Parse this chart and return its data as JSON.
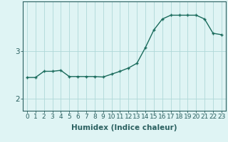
{
  "x": [
    0,
    1,
    2,
    3,
    4,
    5,
    6,
    7,
    8,
    9,
    10,
    11,
    12,
    13,
    14,
    15,
    16,
    17,
    18,
    19,
    20,
    21,
    22,
    23
  ],
  "y": [
    2.45,
    2.45,
    2.58,
    2.58,
    2.6,
    2.47,
    2.47,
    2.47,
    2.47,
    2.46,
    2.52,
    2.58,
    2.65,
    2.75,
    3.08,
    3.45,
    3.68,
    3.76,
    3.76,
    3.76,
    3.76,
    3.68,
    3.38,
    3.35
  ],
  "line_color": "#1a6b5c",
  "marker": "+",
  "bg_color": "#dff4f4",
  "grid_color": "#aed8d8",
  "axis_color": "#2a6060",
  "tick_color": "#2a6060",
  "xlabel": "Humidex (Indice chaleur)",
  "ylim": [
    1.75,
    4.05
  ],
  "xlim": [
    -0.5,
    23.5
  ],
  "yticks": [
    2,
    3
  ],
  "xticks": [
    0,
    1,
    2,
    3,
    4,
    5,
    6,
    7,
    8,
    9,
    10,
    11,
    12,
    13,
    14,
    15,
    16,
    17,
    18,
    19,
    20,
    21,
    22,
    23
  ],
  "tick_fontsize": 6.5,
  "label_fontsize": 7.5,
  "linewidth": 1.0,
  "markersize": 3.5,
  "markeredgewidth": 1.0
}
